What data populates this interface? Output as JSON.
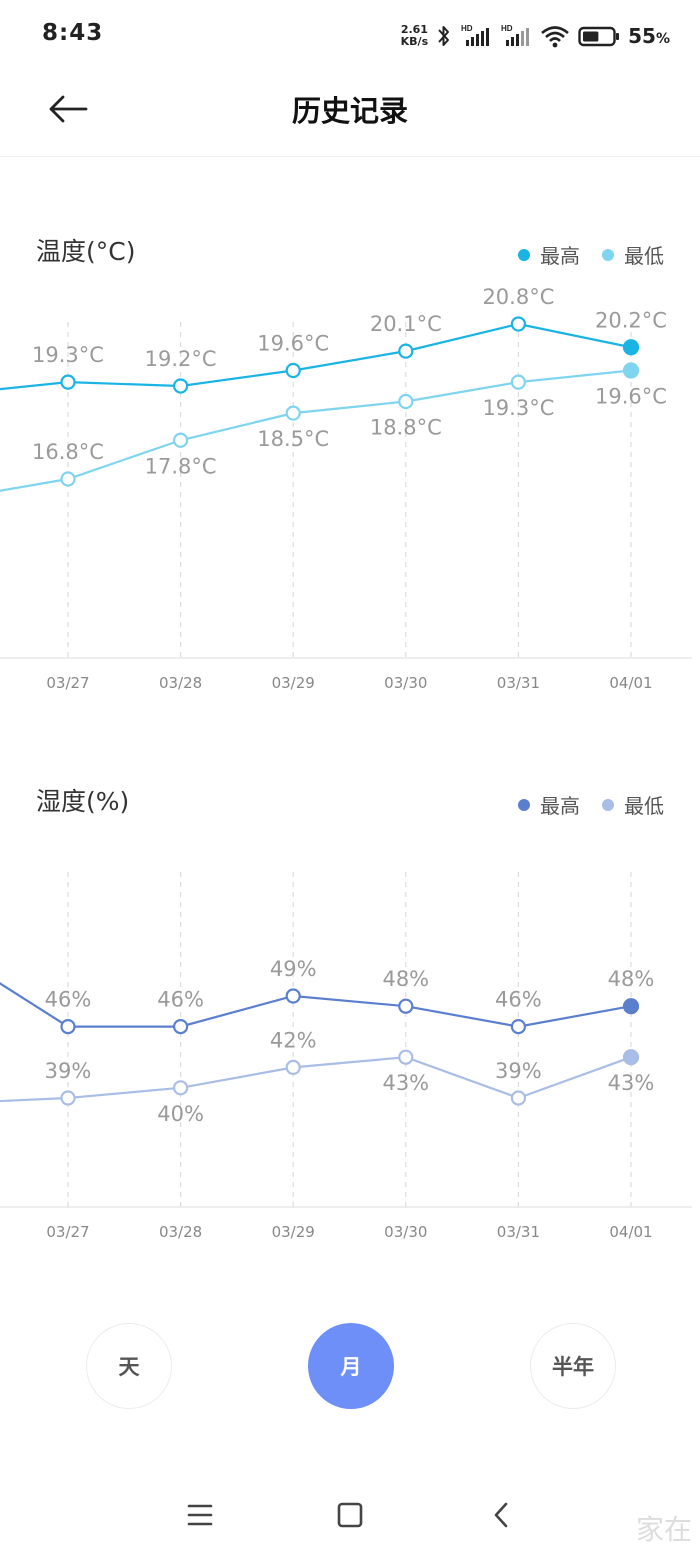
{
  "status_bar": {
    "time": "8:43",
    "net_speed_value": "2.61",
    "net_speed_unit": "KB/s",
    "battery_percent": "55",
    "battery_unit": "%",
    "battery_level": 0.55,
    "icons": [
      "bluetooth-icon",
      "hd-signal-icon",
      "hd-signal-icon",
      "wifi-icon",
      "battery-icon"
    ]
  },
  "header": {
    "title": "历史记录",
    "back_icon": "arrow-left-icon"
  },
  "chart_data": [
    {
      "type": "line",
      "title": "温度(°C)",
      "categories": [
        "03/27",
        "03/28",
        "03/29",
        "03/30",
        "03/31",
        "04/01"
      ],
      "series": [
        {
          "name": "最高",
          "color": "#1ab4e4",
          "values": [
            19.3,
            19.2,
            19.6,
            20.1,
            20.8,
            20.2
          ],
          "labels": [
            "19.3°C",
            "19.2°C",
            "19.6°C",
            "20.1°C",
            "20.8°C",
            "20.2°C"
          ]
        },
        {
          "name": "最低",
          "color": "#7fd4ef",
          "values": [
            16.8,
            17.8,
            18.5,
            18.8,
            19.3,
            19.6
          ],
          "labels": [
            "16.8°C",
            "17.8°C",
            "18.5°C",
            "18.8°C",
            "19.3°C",
            "19.6°C"
          ]
        }
      ],
      "grid": "vertical-dashed",
      "legend": "top-right"
    },
    {
      "type": "line",
      "title": "湿度(%)",
      "categories": [
        "03/27",
        "03/28",
        "03/29",
        "03/30",
        "03/31",
        "04/01"
      ],
      "series": [
        {
          "name": "最高",
          "color": "#5b7fcf",
          "values": [
            46,
            46,
            49,
            48,
            46,
            48
          ],
          "labels": [
            "46%",
            "46%",
            "49%",
            "48%",
            "46%",
            "48%"
          ]
        },
        {
          "name": "最低",
          "color": "#a9bde6",
          "values": [
            39,
            40,
            42,
            43,
            39,
            43
          ],
          "labels": [
            "39%",
            "40%",
            "42%",
            "43%",
            "39%",
            "43%"
          ]
        }
      ],
      "grid": "vertical-dashed",
      "legend": "top-right"
    }
  ],
  "range_buttons": [
    {
      "label": "天",
      "active": false
    },
    {
      "label": "月",
      "active": true
    },
    {
      "label": "半年",
      "active": false
    }
  ],
  "nav_bar": {
    "icons": [
      "menu-icon",
      "home-square-icon",
      "back-chevron-icon"
    ]
  },
  "watermark": "家在"
}
